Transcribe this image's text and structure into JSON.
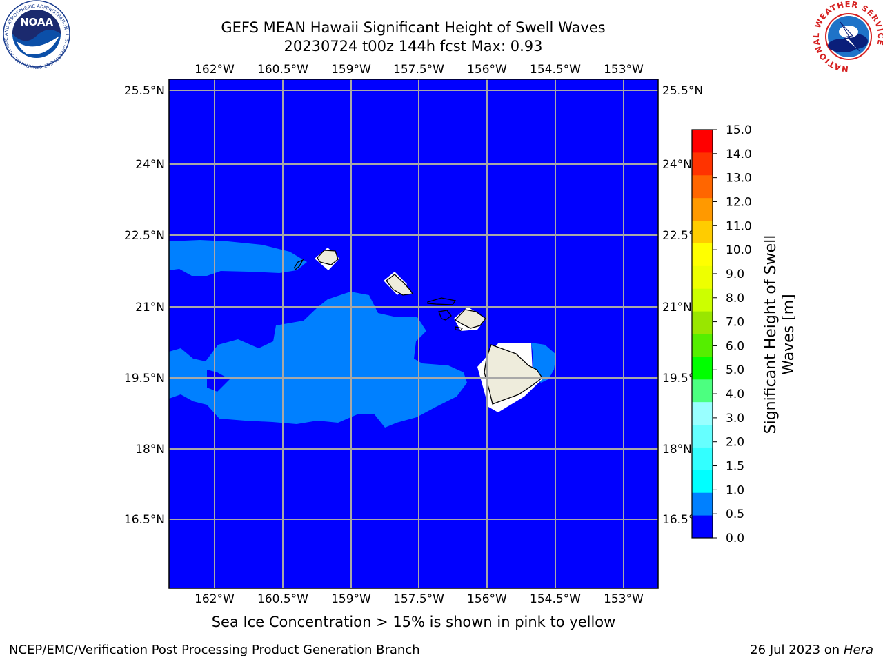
{
  "header": {
    "title_line1": "GEFS MEAN Hawaii Significant Height of Swell Waves",
    "title_line2": "20230724 t00z 144h fcst   Max: 0.93"
  },
  "map": {
    "lon_labels": [
      "162°W",
      "160.5°W",
      "159°W",
      "157.5°W",
      "156°W",
      "154.5°W",
      "153°W"
    ],
    "lat_labels": [
      "25.5°N",
      "24°N",
      "22.5°N",
      "21°N",
      "19.5°N",
      "18°N",
      "16.5°N"
    ],
    "colors": {
      "ocean": "#0000ff",
      "swell_0_5_1_0": "#0080ff",
      "land": "#eeecdc",
      "gridline": "#a8a8a8"
    }
  },
  "colorbar": {
    "label_line1": "Significant Height of Swell",
    "label_line2": "Waves [m]",
    "ticks": [
      "0.0",
      "0.5",
      "1.0",
      "1.5",
      "2.0",
      "3.0",
      "4.0",
      "5.0",
      "6.0",
      "7.0",
      "8.0",
      "9.0",
      "10.0",
      "11.0",
      "12.0",
      "13.0",
      "14.0",
      "15.0"
    ],
    "colors": [
      "#0000ff",
      "#0080ff",
      "#00ffff",
      "#33ffff",
      "#66ffff",
      "#99ffff",
      "#4cff80",
      "#00ff00",
      "#55ee00",
      "#99e600",
      "#ccff00",
      "#eeff00",
      "#ffff00",
      "#ffcc00",
      "#ff9900",
      "#ff6600",
      "#ff3300",
      "#ff0000"
    ]
  },
  "caption": "Sea Ice Concentration > 15% is shown in pink to yellow",
  "footer": {
    "credit": "NCEP/EMC/Verification Post Processing Product Generation Branch",
    "date": "26 Jul 2023 on",
    "machine": "Hera"
  },
  "logos": {
    "noaa_text": "NOAA",
    "noaa_ring": "NATIONAL OCEANIC AND ATMOSPHERIC ADMINISTRATION · U.S. DEPARTMENT OF COMMERCE",
    "nws_ring": "NATIONAL WEATHER SERVICE"
  }
}
